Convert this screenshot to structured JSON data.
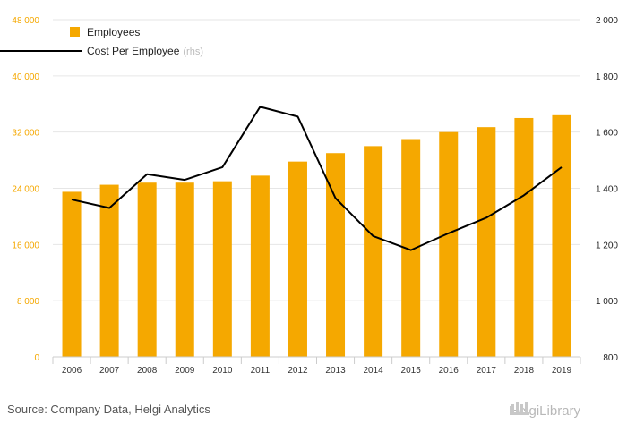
{
  "chart_data": {
    "type": "bar",
    "categories": [
      "2006",
      "2007",
      "2008",
      "2009",
      "2010",
      "2011",
      "2012",
      "2013",
      "2014",
      "2015",
      "2016",
      "2017",
      "2018",
      "2019"
    ],
    "series": [
      {
        "name": "Employees",
        "type": "bar",
        "axis": "left",
        "color": "#f5a800",
        "values": [
          23500,
          24500,
          24800,
          24800,
          25000,
          25800,
          27800,
          29000,
          30000,
          31000,
          32000,
          32700,
          34000,
          34400
        ]
      },
      {
        "name": "Cost Per Employee",
        "type": "line",
        "axis": "right",
        "color": "#000000",
        "values": [
          1360,
          1330,
          1450,
          1430,
          1475,
          1690,
          1655,
          1365,
          1230,
          1180,
          1240,
          1295,
          1375,
          1475
        ]
      }
    ],
    "left_axis": {
      "ylim": [
        0,
        48000
      ],
      "ticks": [
        0,
        8000,
        16000,
        24000,
        32000,
        40000,
        48000
      ],
      "tick_labels": [
        "0",
        "8 000",
        "16 000",
        "24 000",
        "32 000",
        "40 000",
        "48 000"
      ]
    },
    "right_axis": {
      "ylim": [
        800,
        2000
      ],
      "ticks": [
        800,
        1000,
        1200,
        1400,
        1600,
        1800,
        2000
      ],
      "tick_labels": [
        "800",
        "1 000",
        "1 200",
        "1 400",
        "1 600",
        "1 800",
        "2 000"
      ]
    },
    "legend": {
      "placement": "top-left",
      "rhs_note": "(rhs)"
    },
    "grid": true
  },
  "footer": {
    "source": "Source: Company Data, Helgi Analytics",
    "brand": "HelgiLibrary"
  },
  "colors": {
    "bar": "#f5a800",
    "line": "#000000",
    "grid": "#e6e6e6"
  }
}
